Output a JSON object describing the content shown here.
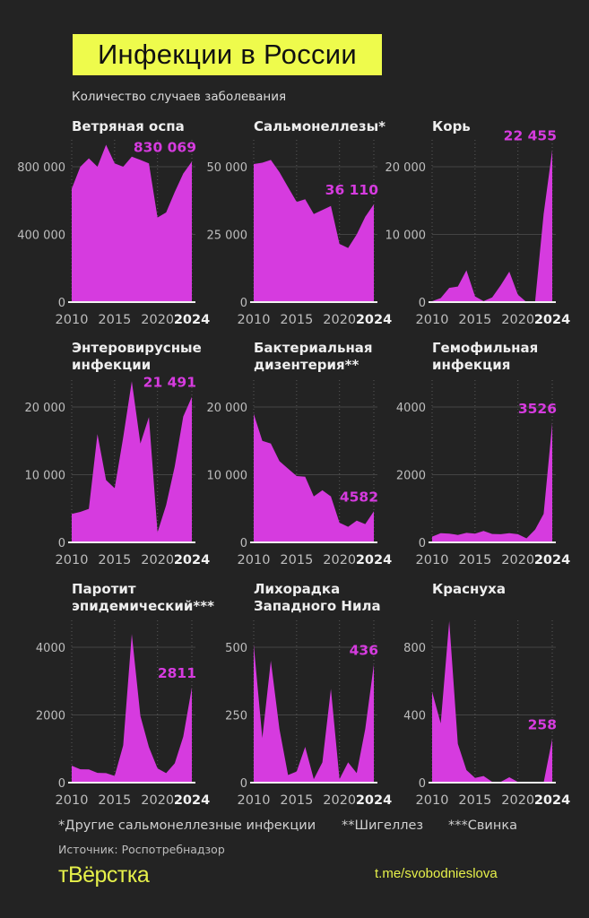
{
  "header": {
    "title": "Инфекции в России",
    "subtitle": "Количество случаев заболевания"
  },
  "colors": {
    "background": "#232323",
    "fill": "#d63bdf",
    "accent": "#eefb4c"
  },
  "chart_data": [
    {
      "type": "area",
      "title": "Ветряная оспа",
      "x": [
        2010,
        2011,
        2012,
        2013,
        2014,
        2015,
        2016,
        2017,
        2018,
        2019,
        2020,
        2021,
        2022,
        2023,
        2024
      ],
      "values": [
        670000,
        800000,
        850000,
        800000,
        930000,
        820000,
        800000,
        860000,
        840000,
        820000,
        500000,
        530000,
        650000,
        760000,
        830069
      ],
      "yticks": [
        0,
        400000,
        800000
      ],
      "ytick_labels": [
        "0",
        "400 000",
        "800 000"
      ],
      "xtick_labels": [
        "2010",
        "2015",
        "2020",
        "2024"
      ],
      "value_label": "830 069"
    },
    {
      "type": "area",
      "title": "Сальмонеллезы*",
      "x": [
        2010,
        2011,
        2012,
        2013,
        2014,
        2015,
        2016,
        2017,
        2018,
        2019,
        2020,
        2021,
        2022,
        2023,
        2024
      ],
      "values": [
        51000,
        51500,
        52500,
        48000,
        42500,
        37000,
        38000,
        32500,
        34000,
        35500,
        21500,
        20000,
        25000,
        31500,
        36110
      ],
      "yticks": [
        0,
        25000,
        50000
      ],
      "ytick_labels": [
        "0",
        "25 000",
        "50 000"
      ],
      "xtick_labels": [
        "2010",
        "2015",
        "2020",
        "2024"
      ],
      "value_label": "36 110"
    },
    {
      "type": "area",
      "title": "Корь",
      "x": [
        2010,
        2011,
        2012,
        2013,
        2014,
        2015,
        2016,
        2017,
        2018,
        2019,
        2020,
        2021,
        2022,
        2023,
        2024
      ],
      "values": [
        130,
        600,
        2100,
        2300,
        4700,
        850,
        150,
        700,
        2500,
        4500,
        1100,
        0,
        100,
        13000,
        22455
      ],
      "yticks": [
        0,
        10000,
        20000
      ],
      "ytick_labels": [
        "0",
        "10 000",
        "20 000"
      ],
      "xtick_labels": [
        "2010",
        "2015",
        "2020",
        "2024"
      ],
      "value_label": "22 455"
    },
    {
      "type": "area",
      "title": "Энтеровирусные\nинфекции",
      "x": [
        2010,
        2011,
        2012,
        2013,
        2014,
        2015,
        2016,
        2017,
        2018,
        2019,
        2020,
        2021,
        2022,
        2023,
        2024
      ],
      "values": [
        4200,
        4500,
        4950,
        16000,
        9200,
        8000,
        15500,
        23800,
        14600,
        18500,
        1500,
        5500,
        11200,
        18600,
        21491
      ],
      "yticks": [
        0,
        10000,
        20000
      ],
      "ytick_labels": [
        "0",
        "10 000",
        "20 000"
      ],
      "xtick_labels": [
        "2010",
        "2015",
        "2020",
        "2024"
      ],
      "value_label": "21 491"
    },
    {
      "type": "area",
      "title": "Бактериальная\nдизентерия**",
      "x": [
        2010,
        2011,
        2012,
        2013,
        2014,
        2015,
        2016,
        2017,
        2018,
        2019,
        2020,
        2021,
        2022,
        2023,
        2024
      ],
      "values": [
        19000,
        15000,
        14600,
        12000,
        10900,
        9800,
        9700,
        6800,
        7700,
        6800,
        2900,
        2300,
        3200,
        2700,
        4582
      ],
      "yticks": [
        0,
        10000,
        20000
      ],
      "ytick_labels": [
        "0",
        "10 000",
        "20 000"
      ],
      "xtick_labels": [
        "2010",
        "2015",
        "2020",
        "2024"
      ],
      "value_label": "4582"
    },
    {
      "type": "area",
      "title": "Гемофильная\nинфекция",
      "x": [
        2010,
        2011,
        2012,
        2013,
        2014,
        2015,
        2016,
        2017,
        2018,
        2019,
        2020,
        2021,
        2022,
        2023,
        2024
      ],
      "values": [
        170,
        270,
        260,
        220,
        280,
        260,
        340,
        250,
        240,
        270,
        240,
        120,
        380,
        840,
        3526
      ],
      "yticks": [
        0,
        2000,
        4000
      ],
      "ytick_labels": [
        "0",
        "2000",
        "4000"
      ],
      "xtick_labels": [
        "2010",
        "2015",
        "2020",
        "2024"
      ],
      "value_label": "3526"
    },
    {
      "type": "area",
      "title": "Паротит\nэпидемический***",
      "x": [
        2010,
        2011,
        2012,
        2013,
        2014,
        2015,
        2016,
        2017,
        2018,
        2019,
        2020,
        2021,
        2022,
        2023,
        2024
      ],
      "values": [
        500,
        395,
        390,
        290,
        280,
        200,
        1100,
        4390,
        1970,
        1050,
        420,
        280,
        570,
        1360,
        2811
      ],
      "yticks": [
        0,
        2000,
        4000
      ],
      "ytick_labels": [
        "0",
        "2000",
        "4000"
      ],
      "xtick_labels": [
        "2010",
        "2015",
        "2020",
        "2024"
      ],
      "value_label": "2811"
    },
    {
      "type": "area",
      "title": "Лихорадка\nЗападного Нила",
      "x": [
        2010,
        2011,
        2012,
        2013,
        2014,
        2015,
        2016,
        2017,
        2018,
        2019,
        2020,
        2021,
        2022,
        2023,
        2024
      ],
      "values": [
        510,
        165,
        450,
        198,
        28,
        41,
        132,
        13,
        75,
        346,
        13,
        75,
        35,
        198,
        436
      ],
      "yticks": [
        0,
        250,
        500
      ],
      "ytick_labels": [
        "0",
        "250",
        "500"
      ],
      "xtick_labels": [
        "2010",
        "2015",
        "2020",
        "2024"
      ],
      "value_label": "436"
    },
    {
      "type": "area",
      "title": "Краснуха",
      "x": [
        2010,
        2011,
        2012,
        2013,
        2014,
        2015,
        2016,
        2017,
        2018,
        2019,
        2020,
        2021,
        2022,
        2023,
        2024
      ],
      "values": [
        537,
        350,
        955,
        229,
        74,
        28,
        39,
        5,
        5,
        32,
        4,
        0,
        0,
        0,
        258
      ],
      "yticks": [
        0,
        400,
        800
      ],
      "ytick_labels": [
        "0",
        "400",
        "800"
      ],
      "xtick_labels": [
        "2010",
        "2015",
        "2020",
        "2024"
      ],
      "value_label": "258"
    }
  ],
  "footnotes": [
    "*Другие сальмонеллезные инфекции",
    "**Шигеллез",
    "***Свинка"
  ],
  "source": "Источник: Роспотребнадзор",
  "logo": "тВёрстка",
  "channel": "t.me/svobodnieslova"
}
